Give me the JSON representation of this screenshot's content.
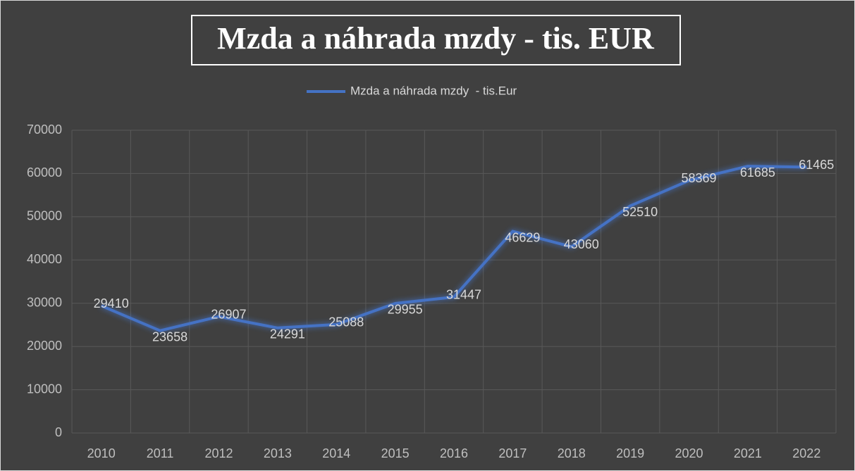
{
  "chart_data": {
    "type": "line",
    "title": "Mzda a náhrada mzdy - tis. EUR",
    "categories": [
      "2010",
      "2011",
      "2012",
      "2013",
      "2014",
      "2015",
      "2016",
      "2017",
      "2018",
      "2019",
      "2020",
      "2021",
      "2022"
    ],
    "series": [
      {
        "name": "Mzda a náhrada mzdy  - tis.Eur",
        "color": "#4472c4",
        "values": [
          29410,
          23658,
          26907,
          24291,
          25088,
          29955,
          31447,
          46629,
          43060,
          52510,
          58369,
          61685,
          61465
        ]
      }
    ],
    "ylim": [
      0,
      70000
    ],
    "yticks": [
      0,
      10000,
      20000,
      30000,
      40000,
      50000,
      60000,
      70000
    ],
    "grid": true,
    "legend": "top"
  }
}
